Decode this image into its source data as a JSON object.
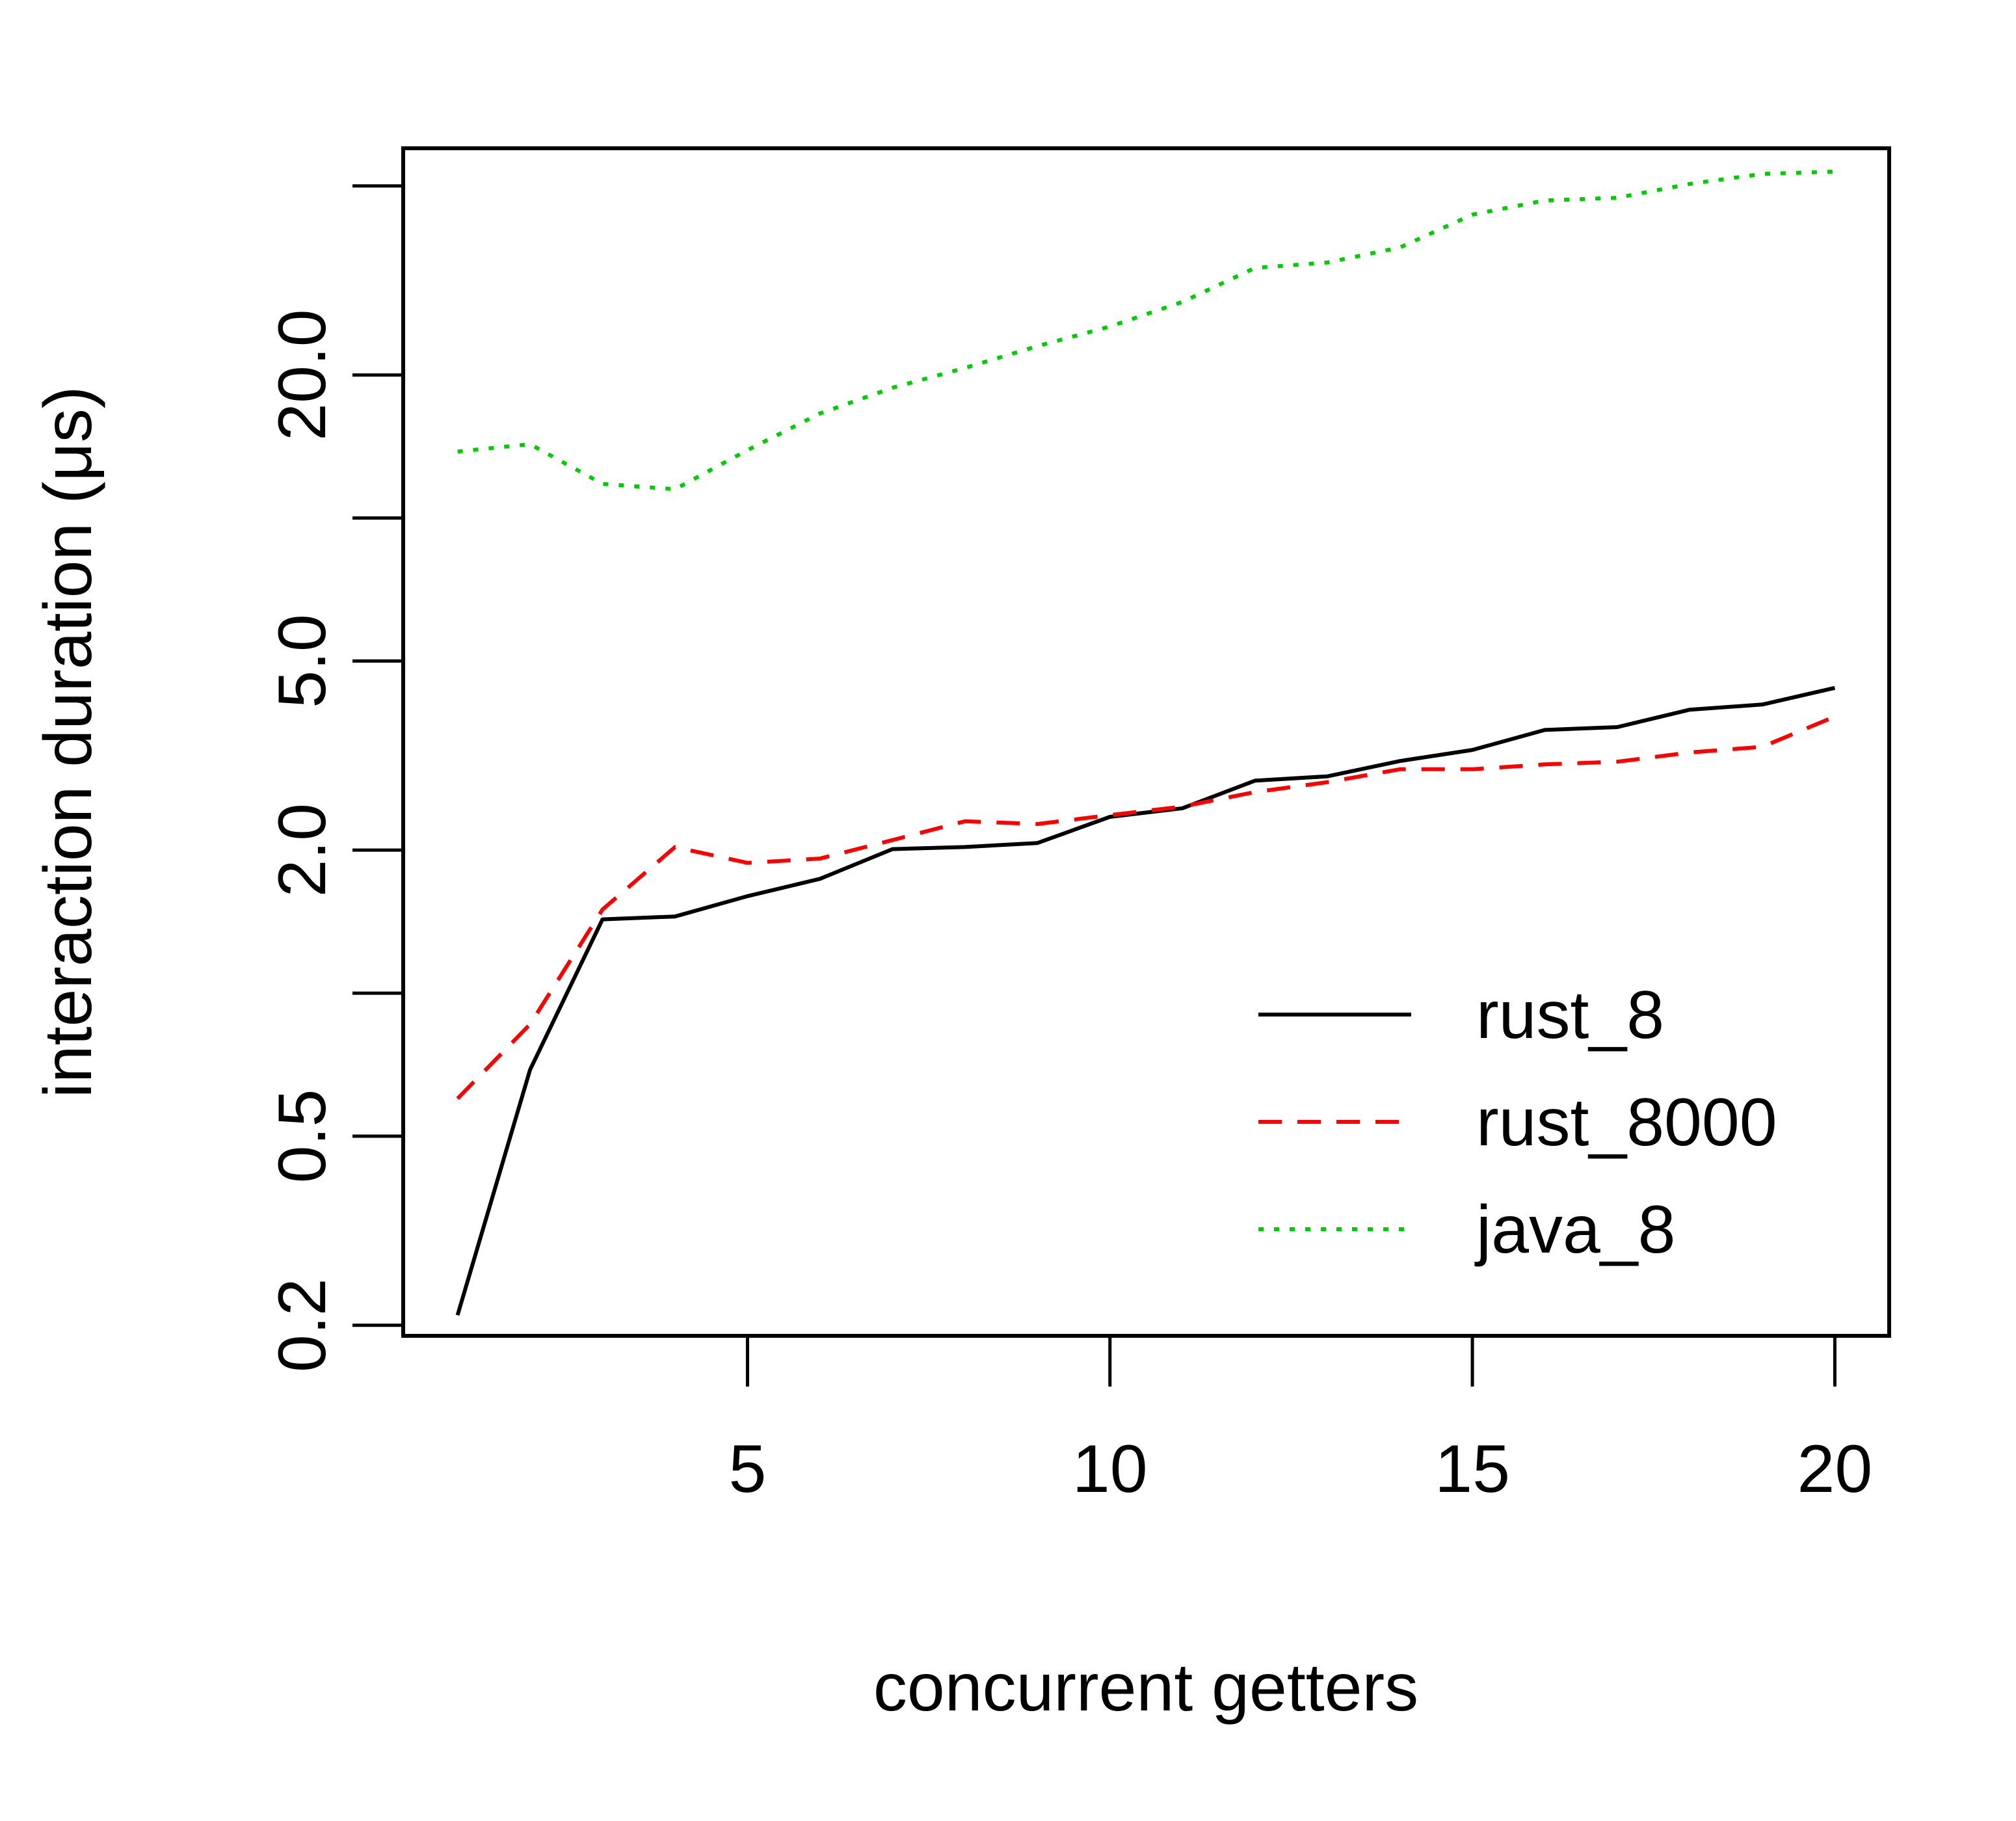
{
  "chart_data": {
    "type": "line",
    "title": "",
    "xlabel": "concurrent getters",
    "ylabel": "interaction duration (μs)",
    "y_scale": "log",
    "x_ticks": [
      5,
      10,
      15,
      20
    ],
    "y_ticks": [
      0.2,
      0.5,
      1.0,
      2.0,
      5.0,
      10.0,
      20.0,
      50.0
    ],
    "y_tick_labels": [
      "0.2",
      "0.5",
      "",
      "2.0",
      "5.0",
      "",
      "20.0",
      ""
    ],
    "x_range": [
      0.25,
      20.75
    ],
    "y_range": [
      0.19,
      60
    ],
    "grid": false,
    "legend_position": "bottom-right",
    "x": [
      1,
      2,
      3,
      4,
      5,
      6,
      7,
      8,
      9,
      10,
      11,
      12,
      13,
      14,
      15,
      16,
      17,
      18,
      19,
      20
    ],
    "series": [
      {
        "name": "rust_8",
        "color": "#000000",
        "dash": "solid",
        "values": [
          0.21,
          0.69,
          1.43,
          1.45,
          1.6,
          1.74,
          2.01,
          2.03,
          2.07,
          2.35,
          2.45,
          2.8,
          2.86,
          3.08,
          3.25,
          3.58,
          3.63,
          3.95,
          4.05,
          4.39
        ]
      },
      {
        "name": "rust_8000",
        "color": "#ff0000",
        "dash": "dashed",
        "values": [
          0.6,
          0.86,
          1.5,
          2.03,
          1.88,
          1.92,
          2.1,
          2.3,
          2.27,
          2.37,
          2.47,
          2.65,
          2.78,
          2.96,
          2.96,
          3.03,
          3.07,
          3.21,
          3.3,
          3.82
        ]
      },
      {
        "name": "java_8",
        "color": "#00cd00",
        "dash": "dotted",
        "values": [
          13.8,
          14.3,
          11.8,
          11.5,
          13.9,
          16.6,
          18.8,
          20.7,
          23.0,
          25.3,
          28.5,
          33.6,
          34.5,
          37.1,
          43.5,
          46.6,
          47.2,
          50.5,
          53.0,
          53.6
        ]
      }
    ]
  }
}
